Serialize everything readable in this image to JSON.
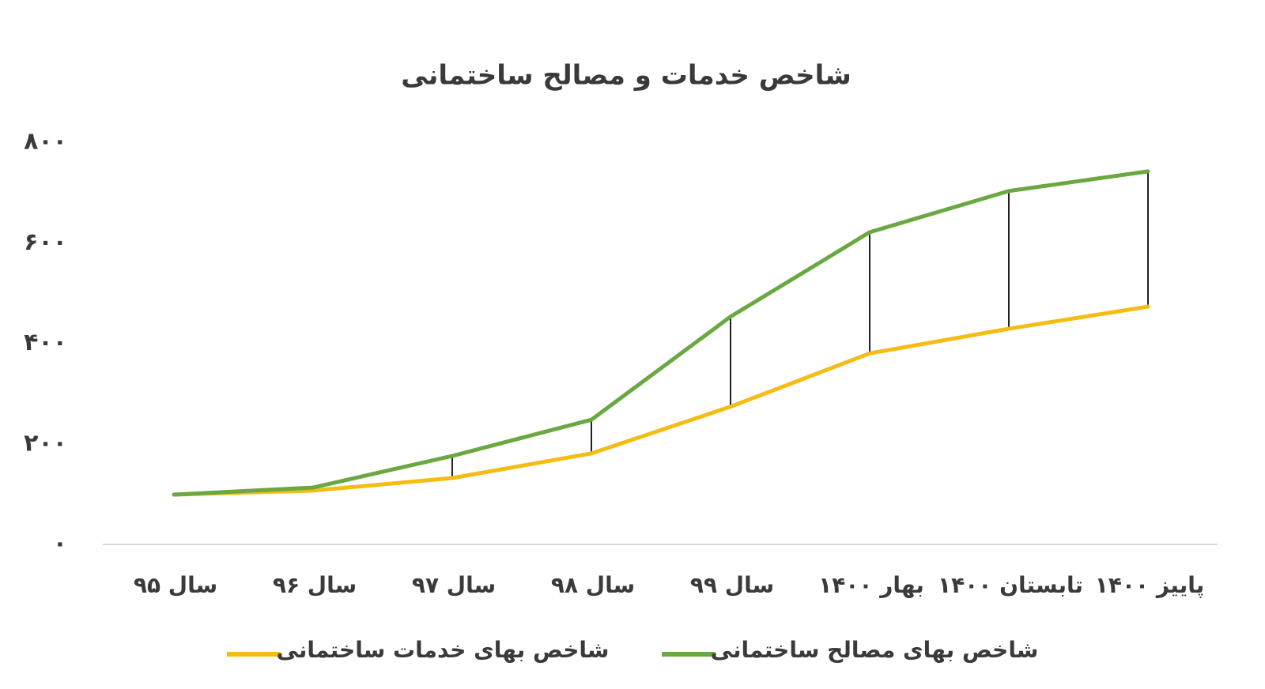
{
  "chart_data": {
    "type": "line",
    "title": "شاخص خدمات و مصالح ساختمانی",
    "categories": [
      "سال ۹۵",
      "سال ۹۶",
      "سال ۹۷",
      "سال ۹۸",
      "سال ۹۹",
      "بهار ۱۴۰۰",
      "تابستان ۱۴۰۰",
      "پاییز ۱۴۰۰"
    ],
    "series": [
      {
        "name": "شاخص بهای خدمات ساختمانی",
        "color": "#f5bc14",
        "values": [
          99,
          107,
          132,
          181,
          274,
          380,
          429,
          473
        ]
      },
      {
        "name": "شاخص بهای مصالح ساختمانی",
        "color": "#6aa842",
        "values": [
          99,
          113,
          176,
          248,
          453,
          621,
          703,
          742
        ]
      }
    ],
    "ylim": [
      0,
      800
    ],
    "yticks": [
      {
        "value": 0,
        "label": "۰"
      },
      {
        "value": 200,
        "label": "۲۰۰"
      },
      {
        "value": 400,
        "label": "۴۰۰"
      },
      {
        "value": 600,
        "label": "۶۰۰"
      },
      {
        "value": 800,
        "label": "۸۰۰"
      }
    ],
    "drop_lines": true,
    "legend": "bottom"
  }
}
